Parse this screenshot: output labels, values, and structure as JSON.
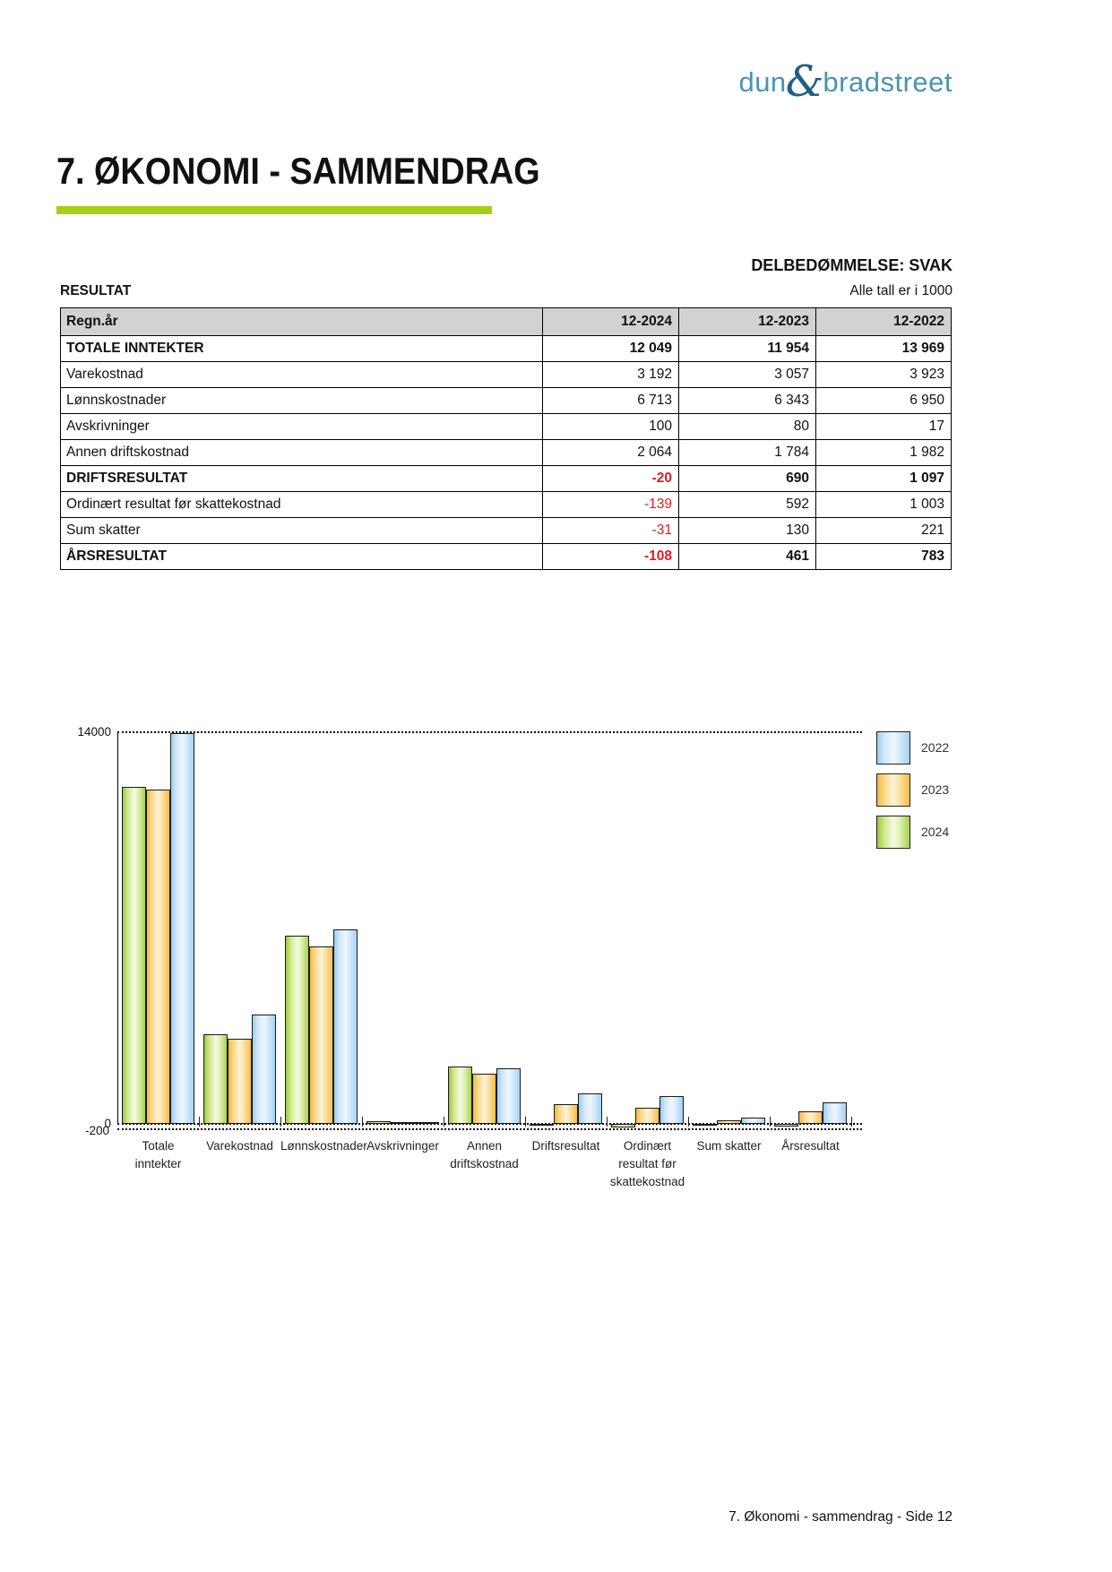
{
  "logo": {
    "part1": "dun",
    "amp": "&",
    "part2": "bradstreet"
  },
  "title": "7. ØKONOMI - SAMMENDRAG",
  "assessment": "DELBEDØMMELSE: SVAK",
  "section": {
    "label": "RESULTAT",
    "note": "Alle tall er i 1000"
  },
  "table": {
    "columns": [
      "Regn.år",
      "12-2024",
      "12-2023",
      "12-2022"
    ],
    "rows": [
      {
        "label": "TOTALE INNTEKTER",
        "bold": true,
        "values": [
          "12 049",
          "11 954",
          "13 969"
        ]
      },
      {
        "label": "Varekostnad",
        "bold": false,
        "values": [
          "3 192",
          "3 057",
          "3 923"
        ]
      },
      {
        "label": "Lønnskostnader",
        "bold": false,
        "values": [
          "6 713",
          "6 343",
          "6 950"
        ]
      },
      {
        "label": "Avskrivninger",
        "bold": false,
        "values": [
          "100",
          "80",
          "17"
        ]
      },
      {
        "label": "Annen driftskostnad",
        "bold": false,
        "values": [
          "2 064",
          "1 784",
          "1 982"
        ]
      },
      {
        "label": "DRIFTSRESULTAT",
        "bold": true,
        "values": [
          "-20",
          "690",
          "1 097"
        ]
      },
      {
        "label": "Ordinært resultat før skattekostnad",
        "bold": false,
        "values": [
          "-139",
          "592",
          "1 003"
        ]
      },
      {
        "label": "Sum skatter",
        "bold": false,
        "values": [
          "-31",
          "130",
          "221"
        ]
      },
      {
        "label": "ÅRSRESULTAT",
        "bold": true,
        "values": [
          "-108",
          "461",
          "783"
        ]
      }
    ]
  },
  "chart_data": {
    "type": "bar",
    "categories": [
      "Totale inntekter",
      "Varekostnad",
      "Lønnskostnader",
      "Avskrivninger",
      "Annen driftskostnad",
      "Driftsresultat",
      "Ordinært resultat før skattekostnad",
      "Sum skatter",
      "Årsresultat"
    ],
    "category_label_lines": [
      [
        "Totale",
        "inntekter"
      ],
      [
        "Varekostnad"
      ],
      [
        "Lønnskostnader"
      ],
      [
        "Avskrivninger"
      ],
      [
        "Annen",
        "driftskostnad"
      ],
      [
        "Driftsresultat"
      ],
      [
        "Ordinært",
        "resultat før",
        "skattekostnad"
      ],
      [
        "Sum skatter"
      ],
      [
        "Årsresultat"
      ]
    ],
    "series": [
      {
        "name": "2024",
        "color": "#aad04e",
        "values": [
          12049,
          3192,
          6713,
          100,
          2064,
          -20,
          -139,
          -31,
          -108
        ]
      },
      {
        "name": "2023",
        "color": "#f7bf4a",
        "values": [
          11954,
          3057,
          6343,
          80,
          1784,
          690,
          592,
          130,
          461
        ]
      },
      {
        "name": "2022",
        "color": "#a6d2f0",
        "values": [
          13969,
          3923,
          6950,
          17,
          1982,
          1097,
          1003,
          221,
          783
        ]
      }
    ],
    "legend": [
      "2022",
      "2023",
      "2024"
    ],
    "legend_position": "top-right",
    "ylim": [
      -200,
      14000
    ],
    "yticks": [
      {
        "value": 14000,
        "label": "14000"
      },
      {
        "value": 0,
        "label": "0"
      },
      {
        "value": -200,
        "label": "-200"
      }
    ],
    "grid": "dotted horizontal lines at 14000, 0 and -200"
  },
  "footer": {
    "text": "7. Økonomi - sammendrag - Side 12"
  },
  "colors": {
    "accent_green": "#a4cf14",
    "negative_red": "#e01b23",
    "table_header_bg": "#d2d2d2",
    "logo_blue": "#4b93b4",
    "logo_amp_blue": "#1f5f85"
  }
}
